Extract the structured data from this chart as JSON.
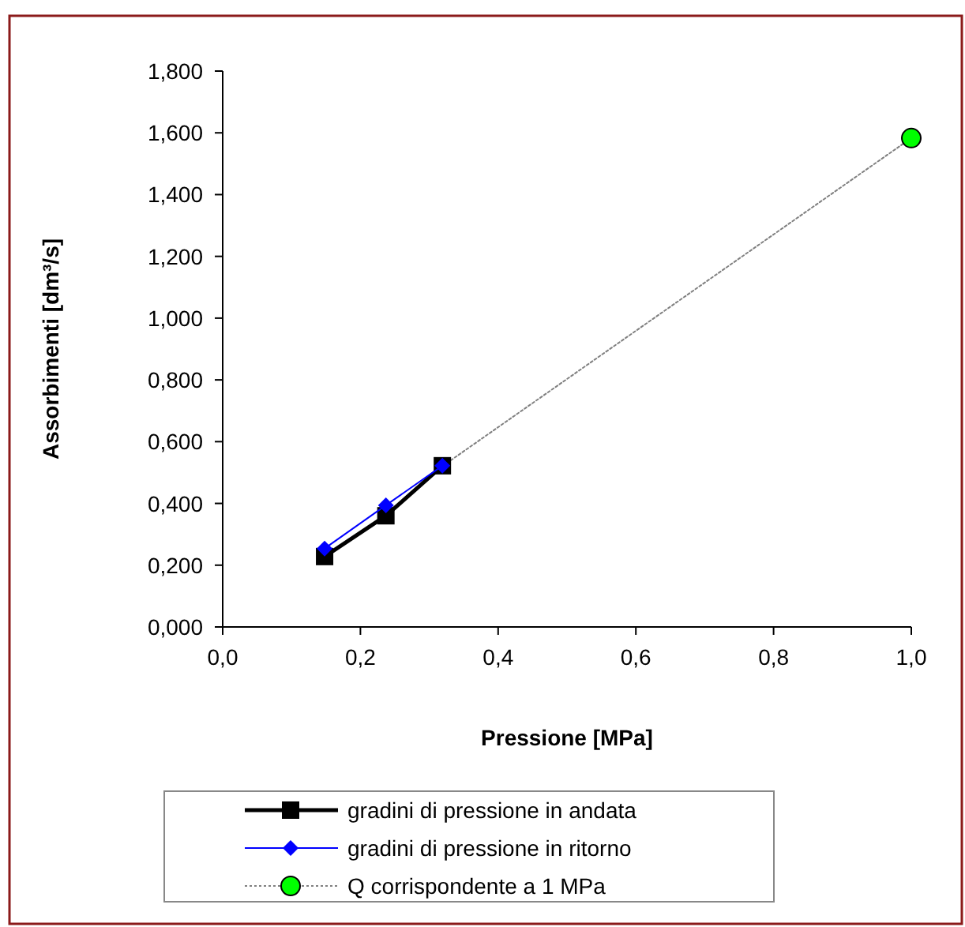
{
  "chart_data": {
    "type": "line",
    "xlabel": "Pressione [MPa]",
    "ylabel": "Assorbimenti [dm³/s]",
    "xlim": [
      0,
      1.0
    ],
    "ylim": [
      0,
      1.8
    ],
    "xticks": [
      {
        "value": 0,
        "label": "0,0"
      },
      {
        "value": 0.2,
        "label": "0,2"
      },
      {
        "value": 0.4,
        "label": "0,4"
      },
      {
        "value": 0.6,
        "label": "0,6"
      },
      {
        "value": 0.8,
        "label": "0,8"
      },
      {
        "value": 1.0,
        "label": "1,0"
      }
    ],
    "yticks": [
      {
        "value": 0,
        "label": "0,000"
      },
      {
        "value": 0.2,
        "label": "0,200"
      },
      {
        "value": 0.4,
        "label": "0,400"
      },
      {
        "value": 0.6,
        "label": "0,600"
      },
      {
        "value": 0.8,
        "label": "0,800"
      },
      {
        "value": 1.0,
        "label": "1,000"
      },
      {
        "value": 1.2,
        "label": "1,200"
      },
      {
        "value": 1.4,
        "label": "1,400"
      },
      {
        "value": 1.6,
        "label": "1,600"
      },
      {
        "value": 1.8,
        "label": "1,800"
      }
    ],
    "grid": false,
    "legend": "bottom",
    "series": [
      {
        "color": "#808080",
        "x": [
          0.32,
          1.0
        ],
        "values": [
          0.522,
          1.583
        ],
        "marker": "none",
        "line_style": "dotted"
      },
      {
        "name": "gradini di pressione in andata",
        "color": "#000000",
        "x": [
          0.148,
          0.237,
          0.319
        ],
        "values": [
          0.228,
          0.36,
          0.522
        ],
        "marker": "square",
        "line_style": "solid"
      },
      {
        "name": "gradini di pressione in ritorno",
        "color": "#0000ff",
        "x": [
          0.148,
          0.237,
          0.319
        ],
        "values": [
          0.254,
          0.394,
          0.522
        ],
        "marker": "diamond",
        "line_style": "solid"
      },
      {
        "name": "Q  corrispondente a 1 MPa",
        "color": "#00ff00",
        "x": [
          1.0
        ],
        "values": [
          1.583
        ],
        "marker": "circle",
        "line_style": "dotted"
      }
    ]
  }
}
